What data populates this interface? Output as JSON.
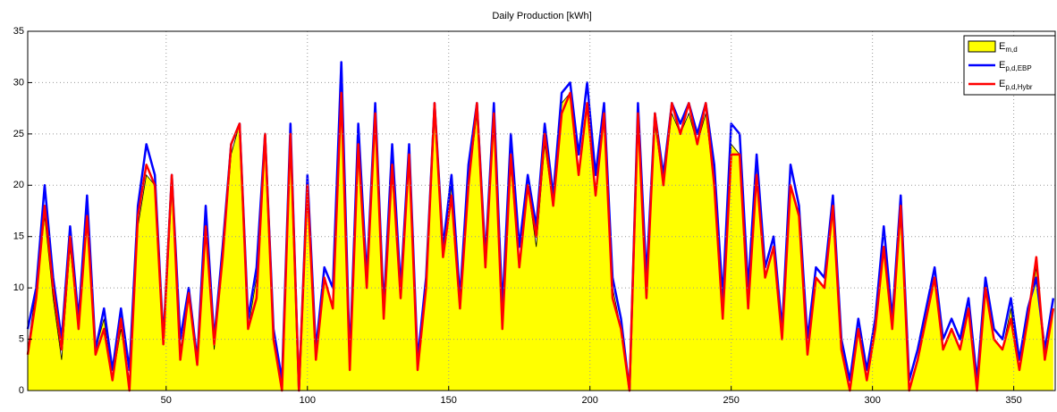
{
  "chart_data": {
    "type": "line",
    "title": "Daily Production [kWh]",
    "x": [
      1,
      4,
      7,
      10,
      13,
      16,
      19,
      22,
      25,
      28,
      31,
      34,
      37,
      40,
      43,
      46,
      49,
      52,
      55,
      58,
      61,
      64,
      67,
      70,
      73,
      76,
      79,
      82,
      85,
      88,
      91,
      94,
      97,
      100,
      103,
      106,
      109,
      112,
      115,
      118,
      121,
      124,
      127,
      130,
      133,
      136,
      139,
      142,
      145,
      148,
      151,
      154,
      157,
      160,
      163,
      166,
      169,
      172,
      175,
      178,
      181,
      184,
      187,
      190,
      193,
      196,
      199,
      202,
      205,
      208,
      211,
      214,
      217,
      220,
      223,
      226,
      229,
      232,
      235,
      238,
      241,
      244,
      247,
      250,
      253,
      256,
      259,
      262,
      265,
      268,
      271,
      274,
      277,
      280,
      283,
      286,
      289,
      292,
      295,
      298,
      301,
      304,
      307,
      310,
      313,
      316,
      319,
      322,
      325,
      328,
      331,
      334,
      337,
      340,
      343,
      346,
      349,
      352,
      355,
      358,
      361,
      364
    ],
    "series": [
      {
        "name": "E",
        "subscript": "m,d",
        "kind": "area",
        "color": "#ffff00",
        "line_color": "#000000",
        "values": [
          4,
          10,
          17,
          9,
          3,
          14,
          6,
          18,
          4,
          7,
          1,
          6,
          1,
          16,
          21,
          20,
          5,
          20,
          4,
          9,
          3,
          17,
          4,
          13,
          23,
          26,
          6,
          11,
          24,
          5,
          0,
          24,
          0,
          20,
          3,
          11,
          8,
          30,
          2,
          25,
          10,
          27,
          7,
          21,
          9,
          23,
          2,
          10,
          27,
          13,
          20,
          8,
          20,
          27,
          12,
          26,
          7,
          22,
          12,
          20,
          14,
          24,
          18,
          28,
          29,
          21,
          28,
          19,
          27,
          10,
          6,
          0,
          26,
          10,
          26,
          20,
          27,
          25,
          27,
          24,
          27,
          20,
          8,
          24,
          23,
          8,
          22,
          11,
          14,
          5,
          20,
          17,
          4,
          11,
          10,
          18,
          4,
          0,
          6,
          1,
          6,
          14,
          6,
          17,
          0,
          3,
          7,
          11,
          4,
          6,
          4,
          8,
          0,
          10,
          5,
          4,
          8,
          2,
          7,
          12,
          3,
          8
        ]
      },
      {
        "name": "E",
        "subscript": "p,d,EBP",
        "kind": "line",
        "color": "#0000ff",
        "values": [
          6,
          10,
          20,
          11,
          5,
          16,
          7,
          19,
          4,
          8,
          2,
          8,
          2,
          18,
          24,
          21,
          5,
          21,
          5,
          10,
          3,
          18,
          5,
          14,
          24,
          26,
          7,
          12,
          25,
          6,
          1,
          26,
          0,
          21,
          4,
          12,
          10,
          32,
          3,
          26,
          11,
          28,
          8,
          24,
          10,
          24,
          3,
          11,
          28,
          14,
          21,
          9,
          22,
          28,
          13,
          28,
          8,
          25,
          14,
          21,
          16,
          26,
          19,
          29,
          30,
          23,
          30,
          21,
          28,
          11,
          7,
          0,
          28,
          11,
          27,
          21,
          28,
          26,
          28,
          25,
          28,
          22,
          9,
          26,
          25,
          10,
          23,
          12,
          15,
          6,
          22,
          18,
          5,
          12,
          11,
          19,
          5,
          1,
          7,
          2,
          7,
          16,
          7,
          19,
          1,
          4,
          8,
          12,
          5,
          7,
          5,
          9,
          1,
          11,
          6,
          5,
          9,
          3,
          8,
          11,
          4,
          9
        ]
      },
      {
        "name": "E",
        "subscript": "p,d,Hybr",
        "kind": "line",
        "color": "#ff0000",
        "values": [
          3.5,
          9,
          18,
          10,
          4,
          15,
          6,
          17,
          3.5,
          6,
          1,
          7,
          0,
          17,
          22,
          20,
          4.5,
          21,
          3,
          9.5,
          2.5,
          16,
          4.5,
          13,
          24,
          26,
          6,
          9,
          25,
          5,
          0,
          25,
          0,
          20,
          3,
          11,
          8,
          29,
          2,
          24,
          10,
          27,
          7,
          22,
          9,
          23,
          2,
          10,
          28,
          13,
          19,
          8,
          20,
          28,
          12,
          27,
          6,
          23,
          12,
          20,
          15,
          25,
          18,
          27,
          29,
          21,
          28,
          19,
          27,
          9,
          6,
          0,
          27,
          9,
          27,
          20,
          28,
          25,
          28,
          24,
          28,
          20,
          7,
          23,
          23,
          8,
          21,
          11,
          14,
          5,
          20,
          17,
          3.5,
          11,
          10,
          18,
          4,
          0,
          6,
          1,
          6,
          14,
          6,
          18,
          0,
          3,
          7,
          11,
          4,
          6,
          4,
          8,
          0,
          10,
          5,
          4,
          7,
          2,
          7,
          13,
          3,
          8
        ]
      }
    ],
    "xlim": [
      1,
      365
    ],
    "xticks": [
      50,
      100,
      150,
      200,
      250,
      300,
      350
    ],
    "ylim": [
      0,
      35
    ],
    "yticks": [
      0,
      5,
      10,
      15,
      20,
      25,
      30,
      35
    ],
    "grid": true,
    "legend": "top-right"
  }
}
